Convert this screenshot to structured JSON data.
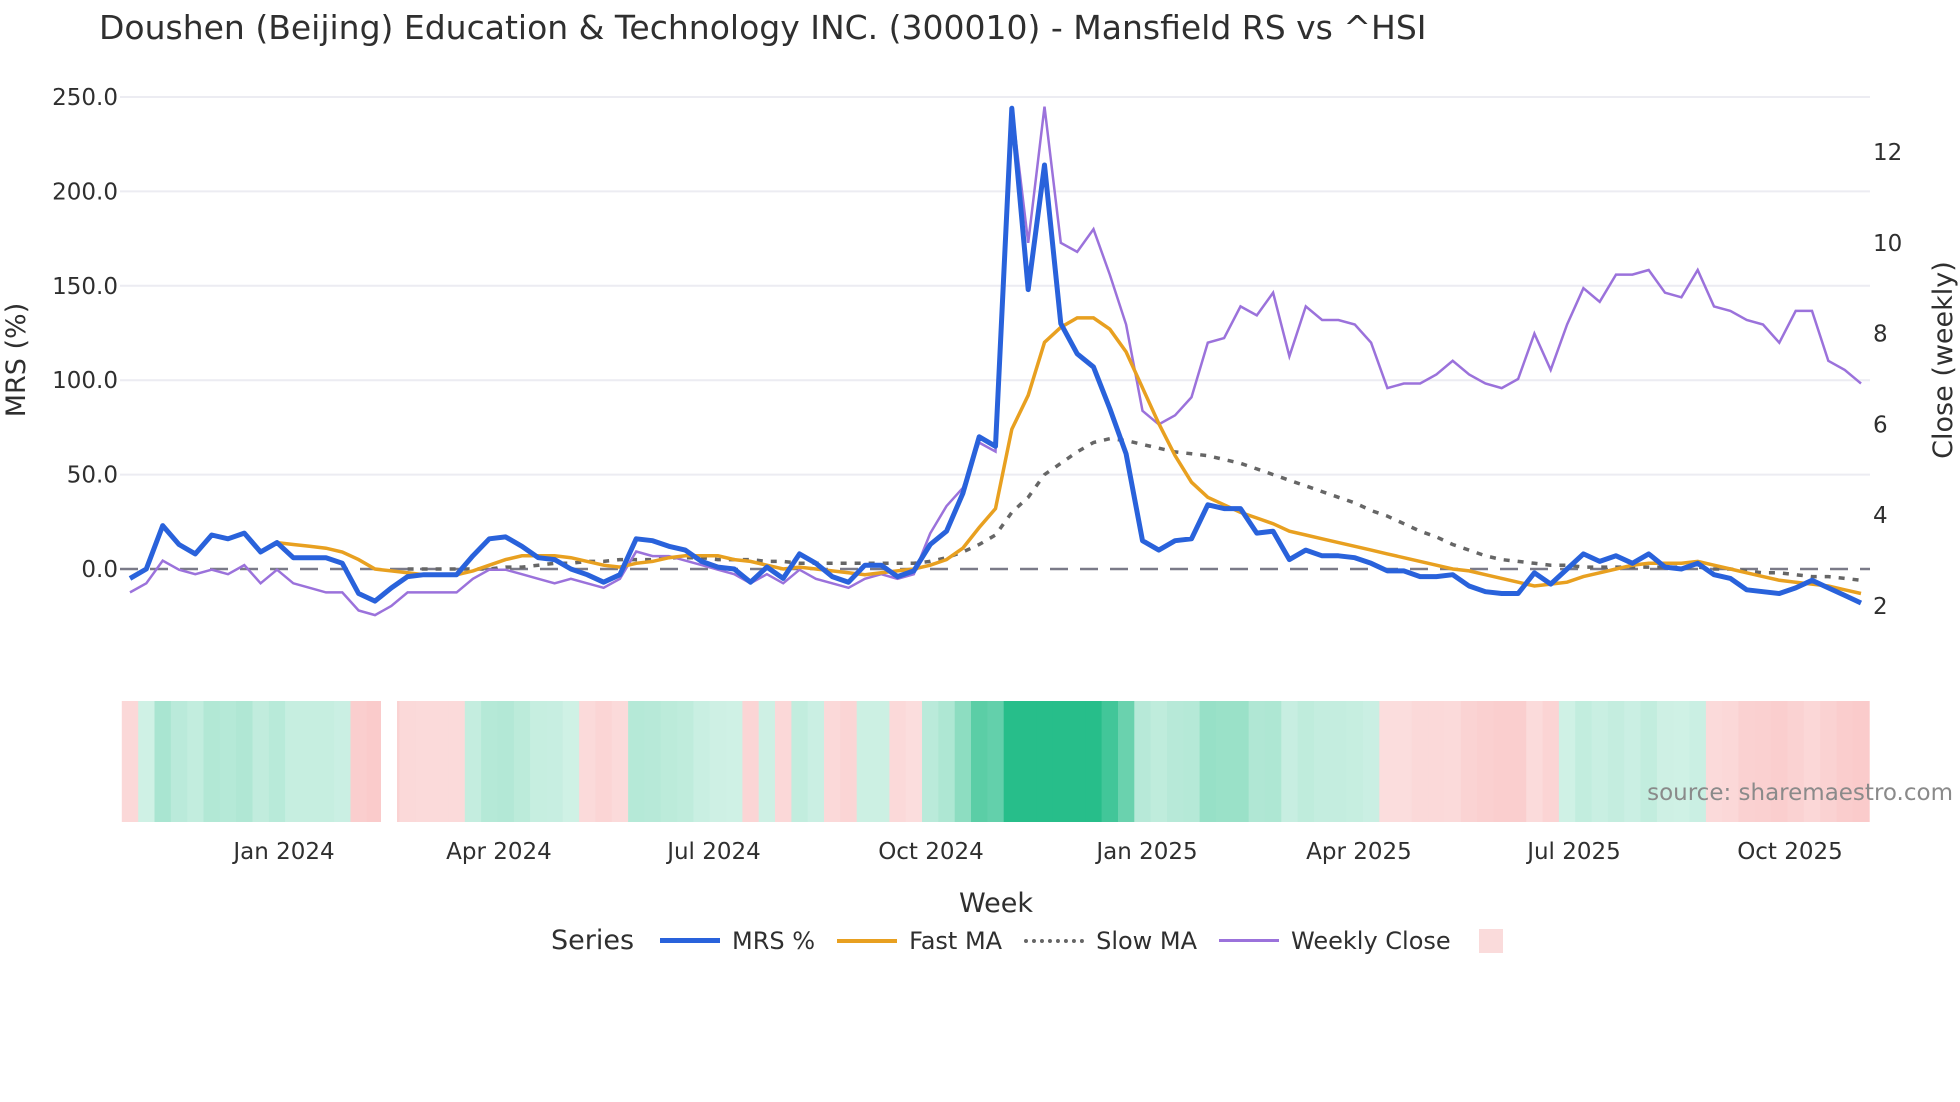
{
  "title": "Doushen (Beijing) Education & Technology INC. (300010) - Mansfield RS vs ^HSI",
  "source_label": "source: sharemaestro.com",
  "legend": {
    "title": "Series",
    "items": [
      {
        "label": "MRS %",
        "color": "#2962DB",
        "style": "solid-thick"
      },
      {
        "label": "Fast MA",
        "color": "#E8A020",
        "style": "solid"
      },
      {
        "label": "Slow MA",
        "color": "#666666",
        "style": "dotted"
      },
      {
        "label": "Weekly Close",
        "color": "#9B72DB",
        "style": "solid-thin"
      },
      {
        "label": "",
        "color": "#FADBDB",
        "style": "box"
      }
    ]
  },
  "colors": {
    "mrs": "#2962DB",
    "mrs_spike": "#5046E0",
    "fast_ma": "#E8A020",
    "slow_ma": "#666666",
    "weekly_close": "#9B72DB",
    "zero_line": "#777788",
    "grid": "#ECECF2",
    "heat_positive_max": "#27BE8A",
    "heat_negative": "#FADBDB"
  },
  "chart_data": {
    "type": "line",
    "title": "Doushen (Beijing) Education & Technology INC. (300010) - Mansfield RS vs ^HSI",
    "xlabel": "Week",
    "ylabel": "MRS (%)",
    "y2label": "Close (weekly)",
    "ylim": [
      -25,
      250
    ],
    "y2lim": [
      1.7,
      13.2
    ],
    "yticks": [
      "250.0",
      "200.0",
      "150.0",
      "100.0",
      "50.0",
      "0.0"
    ],
    "y2ticks": [
      "12",
      "10",
      "8",
      "6",
      "4",
      "2"
    ],
    "xticks": [
      "Jan 2024",
      "Apr 2024",
      "Jul 2024",
      "Oct 2024",
      "Jan 2025",
      "Apr 2025",
      "Jul 2025",
      "Oct 2025"
    ],
    "grid": true,
    "legend_position": "bottom",
    "x_start": "2023-10-23",
    "x_interval": "weekly",
    "series": [
      {
        "name": "MRS %",
        "axis": "y",
        "values": [
          -5,
          0,
          23,
          13,
          8,
          18,
          16,
          19,
          9,
          14,
          6,
          6,
          6,
          3,
          -13,
          -17,
          -10,
          -4,
          -3,
          -3,
          -3,
          7,
          16,
          17,
          12,
          6,
          5,
          0,
          -3,
          -7,
          -3,
          16,
          15,
          12,
          10,
          4,
          1,
          0,
          -7,
          1,
          -5,
          8,
          3,
          -4,
          -7,
          2,
          2,
          -4,
          -1,
          13,
          20,
          40,
          70,
          65,
          244,
          148,
          214,
          130,
          114,
          107,
          85,
          61,
          15,
          10,
          15,
          16,
          34,
          32,
          32,
          19,
          20,
          5,
          10,
          7,
          7,
          6,
          3,
          -1,
          -1,
          -4,
          -4,
          -3,
          -9,
          -12,
          -13,
          -13,
          -2,
          -8,
          0,
          8,
          4,
          7,
          3,
          8,
          1,
          0,
          3,
          -3,
          -5,
          -11,
          -12,
          -13,
          -10,
          -6,
          -10,
          -14,
          -18
        ]
      },
      {
        "name": "Fast MA",
        "axis": "y",
        "values": [
          null,
          null,
          null,
          null,
          null,
          null,
          null,
          null,
          null,
          14,
          13,
          12,
          11,
          9,
          5,
          0,
          -1,
          -2,
          -3,
          -3,
          -3,
          -1,
          2,
          5,
          7,
          7,
          7,
          6,
          4,
          2,
          1,
          3,
          4,
          6,
          7,
          7,
          7,
          5,
          4,
          2,
          0,
          1,
          0,
          -1,
          -2,
          -3,
          -2,
          -1,
          0,
          2,
          5,
          11,
          22,
          32,
          74,
          92,
          120,
          128,
          133,
          133,
          127,
          115,
          96,
          77,
          60,
          46,
          38,
          34,
          30,
          27,
          24,
          20,
          18,
          16,
          14,
          12,
          10,
          8,
          6,
          4,
          2,
          0,
          -1,
          -3,
          -5,
          -7,
          -9,
          -8,
          -7,
          -4,
          -2,
          0,
          2,
          3,
          3,
          3,
          4,
          2,
          0,
          -2,
          -4,
          -6,
          -7,
          -8,
          -9,
          -11,
          -13
        ]
      },
      {
        "name": "Slow MA",
        "axis": "y",
        "values": [
          null,
          null,
          null,
          null,
          null,
          null,
          null,
          null,
          null,
          null,
          null,
          null,
          null,
          null,
          null,
          null,
          null,
          0,
          0,
          0,
          0,
          0,
          0,
          1,
          1,
          2,
          3,
          3,
          4,
          4,
          5,
          5,
          5,
          6,
          6,
          6,
          5,
          5,
          5,
          4,
          4,
          3,
          3,
          3,
          3,
          3,
          3,
          3,
          3,
          4,
          6,
          9,
          13,
          18,
          30,
          38,
          50,
          56,
          62,
          67,
          69,
          68,
          66,
          64,
          62,
          61,
          60,
          58,
          56,
          53,
          50,
          47,
          44,
          41,
          38,
          35,
          31,
          28,
          24,
          20,
          17,
          13,
          10,
          7,
          5,
          4,
          3,
          2,
          2,
          1,
          1,
          1,
          1,
          1,
          1,
          1,
          1,
          0,
          0,
          -1,
          -2,
          -2,
          -3,
          -4,
          -4,
          -5,
          -6
        ]
      },
      {
        "name": "Weekly Close",
        "axis": "y2",
        "values": [
          2.3,
          2.5,
          3.0,
          2.8,
          2.7,
          2.8,
          2.7,
          2.9,
          2.5,
          2.8,
          2.5,
          2.4,
          2.3,
          2.3,
          1.9,
          1.8,
          2.0,
          2.3,
          2.3,
          2.3,
          2.3,
          2.6,
          2.8,
          2.8,
          2.7,
          2.6,
          2.5,
          2.6,
          2.5,
          2.4,
          2.6,
          3.2,
          3.1,
          3.1,
          3.0,
          2.9,
          2.8,
          2.7,
          2.5,
          2.7,
          2.5,
          2.8,
          2.6,
          2.5,
          2.4,
          2.6,
          2.7,
          2.6,
          2.7,
          3.6,
          4.2,
          4.6,
          5.6,
          5.4,
          13.0,
          10.0,
          13.0,
          10.0,
          9.8,
          10.3,
          9.3,
          8.2,
          6.3,
          6.0,
          6.2,
          6.6,
          7.8,
          7.9,
          8.6,
          8.4,
          8.9,
          7.5,
          8.6,
          8.3,
          8.3,
          8.2,
          7.8,
          6.8,
          6.9,
          6.9,
          7.1,
          7.4,
          7.1,
          6.9,
          6.8,
          7.0,
          8.0,
          7.2,
          8.2,
          9.0,
          8.7,
          9.3,
          9.3,
          9.4,
          8.9,
          8.8,
          9.4,
          8.6,
          8.5,
          8.3,
          8.2,
          7.8,
          8.5,
          8.5,
          7.4,
          7.2,
          6.9
        ]
      }
    ],
    "heatmap_band": {
      "description": "Weekly MRS regime strip below chart; green = positive MRS (intensity by magnitude), red = negative",
      "segments": [
        {
          "from": "Oct 2023",
          "to": "Nov 2023",
          "sign": "negative"
        },
        {
          "from": "Nov 2023",
          "to": "Feb 2024",
          "sign": "positive"
        },
        {
          "from": "Feb 2024",
          "to": "Mar 2024",
          "sign": "negative"
        },
        {
          "from": "Mar 2024",
          "to": "Apr 2024",
          "sign": "negative"
        },
        {
          "from": "Apr 2024",
          "to": "Jun 2024",
          "sign": "positive"
        },
        {
          "from": "Jun 2024",
          "to": "Jun 2024",
          "sign": "negative"
        },
        {
          "from": "Jun 2024",
          "to": "Aug 2024",
          "sign": "positive"
        },
        {
          "from": "Aug 2024",
          "to": "Sep 2024",
          "sign": "negative"
        },
        {
          "from": "Sep 2024",
          "to": "Sep 2024",
          "sign": "positive"
        },
        {
          "from": "Sep 2024",
          "to": "Oct 2024",
          "sign": "negative"
        },
        {
          "from": "Oct 2024",
          "to": "Apr 2025",
          "sign": "positive",
          "peak": "Nov-Dec 2024"
        },
        {
          "from": "Apr 2025",
          "to": "Jul 2025",
          "sign": "negative"
        },
        {
          "from": "Jul 2025",
          "to": "Sep 2025",
          "sign": "positive"
        },
        {
          "from": "Sep 2025",
          "to": "Nov 2025",
          "sign": "negative"
        }
      ]
    }
  }
}
